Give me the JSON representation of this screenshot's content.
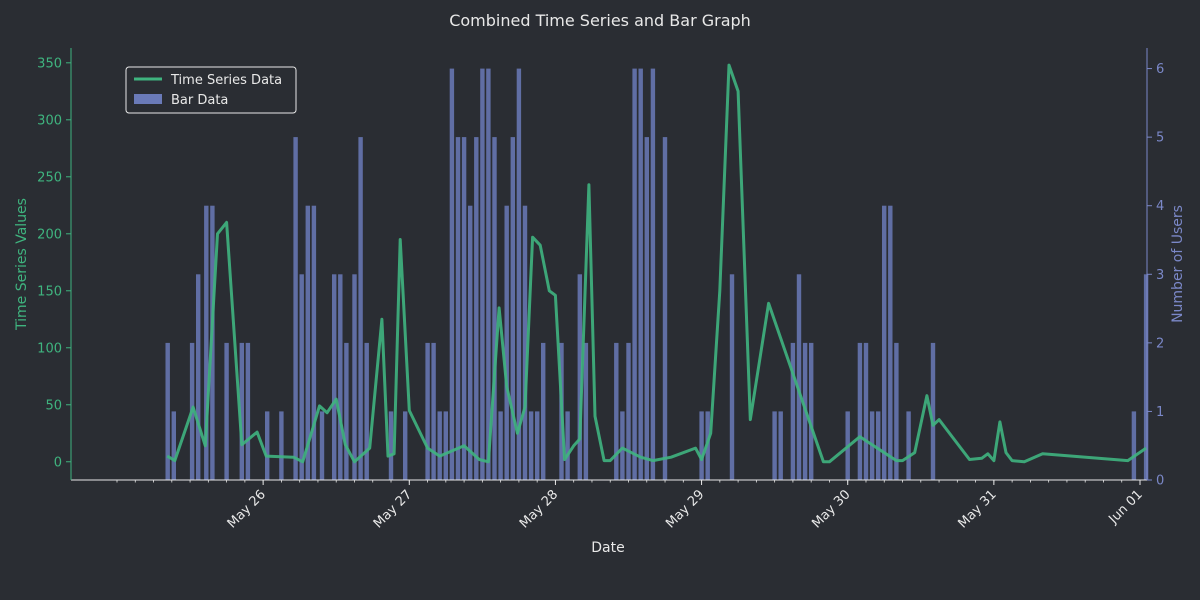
{
  "chart_data": {
    "type": "bar+line",
    "title": "Combined Time Series and Bar Graph",
    "xlabel": "Date",
    "ylabel_left": "Time Series Values",
    "ylabel_right": "Number of Users",
    "x_ticks": [
      "May 26",
      "May 27",
      "May 28",
      "May 29",
      "May 30",
      "May 31",
      "Jun 01"
    ],
    "x_range": [
      "2024-05-25 00:00",
      "2024-06-01 00:00"
    ],
    "ylim_left": [
      -16,
      363
    ],
    "yticks_left": [
      0,
      50,
      100,
      150,
      200,
      250,
      300,
      350
    ],
    "ylim_right": [
      0,
      6.3
    ],
    "yticks_right": [
      0,
      1,
      2,
      3,
      4,
      5,
      6
    ],
    "legend_position": "top-left",
    "legend": [
      {
        "label": "Time Series Data",
        "kind": "line"
      },
      {
        "label": "Bar Data",
        "kind": "bar"
      }
    ],
    "colors": {
      "background": "#2a2d33",
      "line": "#3fb47f",
      "bar": "#6a7ab8",
      "axis_left": "#3fb47f",
      "axis_right": "#7b88c8",
      "text": "#e8e8e8"
    },
    "line_series": {
      "name": "Time Series Data",
      "points": [
        [
          "2024-05-25 08:15",
          5
        ],
        [
          "2024-05-25 09:30",
          1
        ],
        [
          "2024-05-25 12:30",
          48
        ],
        [
          "2024-05-25 14:30",
          14
        ],
        [
          "2024-05-25 16:30",
          200
        ],
        [
          "2024-05-25 18:00",
          210
        ],
        [
          "2024-05-25 20:30",
          15
        ],
        [
          "2024-05-25 23:00",
          26
        ],
        [
          "2024-05-26 00:30",
          5
        ],
        [
          "2024-05-26 05:00",
          4
        ],
        [
          "2024-05-26 06:30",
          0
        ],
        [
          "2024-05-26 09:15",
          49
        ],
        [
          "2024-05-26 10:30",
          43
        ],
        [
          "2024-05-26 12:00",
          55
        ],
        [
          "2024-05-26 13:30",
          15
        ],
        [
          "2024-05-26 15:00",
          0
        ],
        [
          "2024-05-26 17:30",
          12
        ],
        [
          "2024-05-26 19:30",
          125
        ],
        [
          "2024-05-26 20:30",
          5
        ],
        [
          "2024-05-26 21:30",
          7
        ],
        [
          "2024-05-26 22:30",
          195
        ],
        [
          "2024-05-27 00:00",
          45
        ],
        [
          "2024-05-27 03:00",
          12
        ],
        [
          "2024-05-27 05:00",
          5
        ],
        [
          "2024-05-27 09:00",
          14
        ],
        [
          "2024-05-27 11:30",
          2
        ],
        [
          "2024-05-27 13:00",
          0
        ],
        [
          "2024-05-27 14:45",
          135
        ],
        [
          "2024-05-27 16:00",
          66
        ],
        [
          "2024-05-27 17:45",
          25
        ],
        [
          "2024-05-27 19:00",
          48
        ],
        [
          "2024-05-27 20:15",
          197
        ],
        [
          "2024-05-27 21:30",
          190
        ],
        [
          "2024-05-27 23:00",
          150
        ],
        [
          "2024-05-28 00:00",
          146
        ],
        [
          "2024-05-28 01:30",
          2
        ],
        [
          "2024-05-28 03:00",
          14
        ],
        [
          "2024-05-28 04:00",
          20
        ],
        [
          "2024-05-28 05:30",
          243
        ],
        [
          "2024-05-28 06:30",
          40
        ],
        [
          "2024-05-28 08:00",
          1
        ],
        [
          "2024-05-28 09:00",
          1
        ],
        [
          "2024-05-28 11:00",
          12
        ],
        [
          "2024-05-28 14:00",
          4
        ],
        [
          "2024-05-28 16:00",
          1
        ],
        [
          "2024-05-28 19:00",
          4
        ],
        [
          "2024-05-28 23:00",
          12
        ],
        [
          "2024-05-29 00:00",
          2
        ],
        [
          "2024-05-29 01:30",
          25
        ],
        [
          "2024-05-29 03:00",
          150
        ],
        [
          "2024-05-29 04:30",
          348
        ],
        [
          "2024-05-29 06:00",
          325
        ],
        [
          "2024-05-29 08:00",
          37
        ],
        [
          "2024-05-29 11:00",
          139
        ],
        [
          "2024-05-29 20:00",
          0
        ],
        [
          "2024-05-29 21:00",
          0
        ],
        [
          "2024-05-30 02:00",
          22
        ],
        [
          "2024-05-30 08:00",
          1
        ],
        [
          "2024-05-30 09:00",
          1
        ],
        [
          "2024-05-30 11:00",
          8
        ],
        [
          "2024-05-30 13:00",
          58
        ],
        [
          "2024-05-30 14:00",
          32
        ],
        [
          "2024-05-30 15:00",
          37
        ],
        [
          "2024-05-30 20:00",
          2
        ],
        [
          "2024-05-30 22:00",
          3
        ],
        [
          "2024-05-30 23:00",
          7
        ],
        [
          "2024-05-31 00:00",
          1
        ],
        [
          "2024-05-31 01:00",
          35
        ],
        [
          "2024-05-31 02:00",
          8
        ],
        [
          "2024-05-31 03:00",
          1
        ],
        [
          "2024-05-31 05:00",
          0
        ],
        [
          "2024-05-31 08:00",
          7
        ],
        [
          "2024-05-31 22:00",
          1
        ],
        [
          "2024-06-01 01:00",
          12
        ]
      ]
    },
    "bar_series": {
      "name": "Bar Data",
      "points": [
        [
          "2024-05-25 08:20",
          2
        ],
        [
          "2024-05-25 09:20",
          1
        ],
        [
          "2024-05-25 12:20",
          2
        ],
        [
          "2024-05-25 13:20",
          3
        ],
        [
          "2024-05-25 14:40",
          4
        ],
        [
          "2024-05-25 15:40",
          4
        ],
        [
          "2024-05-25 18:00",
          2
        ],
        [
          "2024-05-25 20:30",
          2
        ],
        [
          "2024-05-25 21:30",
          2
        ],
        [
          "2024-05-26 00:40",
          1
        ],
        [
          "2024-05-26 03:00",
          1
        ],
        [
          "2024-05-26 05:20",
          5
        ],
        [
          "2024-05-26 06:20",
          3
        ],
        [
          "2024-05-26 07:20",
          4
        ],
        [
          "2024-05-26 08:20",
          4
        ],
        [
          "2024-05-26 09:40",
          1
        ],
        [
          "2024-05-26 11:40",
          3
        ],
        [
          "2024-05-26 12:40",
          3
        ],
        [
          "2024-05-26 13:40",
          2
        ],
        [
          "2024-05-26 15:00",
          3
        ],
        [
          "2024-05-26 16:00",
          5
        ],
        [
          "2024-05-26 17:00",
          2
        ],
        [
          "2024-05-26 21:00",
          1
        ],
        [
          "2024-05-26 23:20",
          1
        ],
        [
          "2024-05-27 03:00",
          2
        ],
        [
          "2024-05-27 04:00",
          2
        ],
        [
          "2024-05-27 05:00",
          1
        ],
        [
          "2024-05-27 06:00",
          1
        ],
        [
          "2024-05-27 07:00",
          6
        ],
        [
          "2024-05-27 08:00",
          5
        ],
        [
          "2024-05-27 09:00",
          5
        ],
        [
          "2024-05-27 10:00",
          4
        ],
        [
          "2024-05-27 11:00",
          5
        ],
        [
          "2024-05-27 12:00",
          6
        ],
        [
          "2024-05-27 13:00",
          6
        ],
        [
          "2024-05-27 14:00",
          5
        ],
        [
          "2024-05-27 15:00",
          1
        ],
        [
          "2024-05-27 16:00",
          4
        ],
        [
          "2024-05-27 17:00",
          5
        ],
        [
          "2024-05-27 18:00",
          6
        ],
        [
          "2024-05-27 19:00",
          4
        ],
        [
          "2024-05-27 20:00",
          1
        ],
        [
          "2024-05-27 21:00",
          1
        ],
        [
          "2024-05-27 22:00",
          2
        ],
        [
          "2024-05-28 01:00",
          2
        ],
        [
          "2024-05-28 02:00",
          1
        ],
        [
          "2024-05-28 04:00",
          3
        ],
        [
          "2024-05-28 05:00",
          2
        ],
        [
          "2024-05-28 10:00",
          2
        ],
        [
          "2024-05-28 11:00",
          1
        ],
        [
          "2024-05-28 12:00",
          2
        ],
        [
          "2024-05-28 13:00",
          6
        ],
        [
          "2024-05-28 14:00",
          6
        ],
        [
          "2024-05-28 15:00",
          5
        ],
        [
          "2024-05-28 16:00",
          6
        ],
        [
          "2024-05-28 18:00",
          5
        ],
        [
          "2024-05-29 00:00",
          1
        ],
        [
          "2024-05-29 01:00",
          1
        ],
        [
          "2024-05-29 05:00",
          3
        ],
        [
          "2024-05-29 12:00",
          1
        ],
        [
          "2024-05-29 13:00",
          1
        ],
        [
          "2024-05-29 15:00",
          2
        ],
        [
          "2024-05-29 16:00",
          3
        ],
        [
          "2024-05-29 17:00",
          2
        ],
        [
          "2024-05-29 18:00",
          2
        ],
        [
          "2024-05-30 00:00",
          1
        ],
        [
          "2024-05-30 02:00",
          2
        ],
        [
          "2024-05-30 03:00",
          2
        ],
        [
          "2024-05-30 04:00",
          1
        ],
        [
          "2024-05-30 05:00",
          1
        ],
        [
          "2024-05-30 06:00",
          4
        ],
        [
          "2024-05-30 07:00",
          4
        ],
        [
          "2024-05-30 08:00",
          2
        ],
        [
          "2024-05-30 10:00",
          1
        ],
        [
          "2024-05-30 14:00",
          2
        ],
        [
          "2024-05-31 23:00",
          1
        ],
        [
          "2024-06-01 01:00",
          3
        ]
      ]
    }
  }
}
